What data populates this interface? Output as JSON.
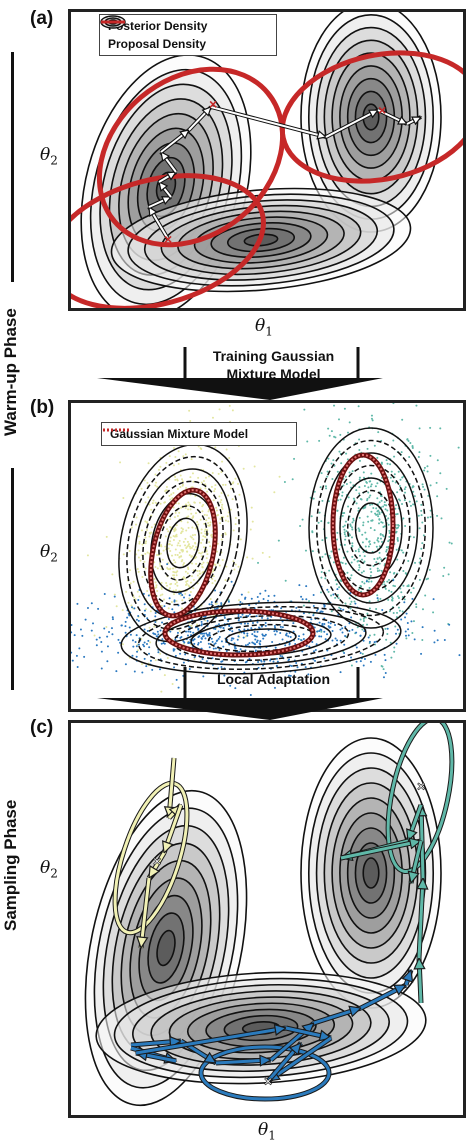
{
  "panels": [
    {
      "label": "(a)"
    },
    {
      "label": "(b)"
    },
    {
      "label": "(c)"
    }
  ],
  "axes": {
    "x": "θ",
    "x_sub": "1",
    "y": "θ",
    "y_sub": "2"
  },
  "legend_a": {
    "posterior": "Posterior Density",
    "proposal": "Proposal Density"
  },
  "legend_b": {
    "gmm": "Gaussian Mixture Model"
  },
  "transitions": {
    "training_line1": "Training  Gaussian",
    "training_line2": "Mixture Model",
    "local": "Local Adaptation"
  },
  "phases": {
    "warmup": "Warm-up Phase",
    "sampling": "Sampling Phase"
  },
  "colors": {
    "proposal": "#c62828",
    "contour": "#111111",
    "cluster_yellow": "#e3e6a0",
    "cluster_teal": "#5fb8a8",
    "cluster_blue": "#2a78c0",
    "arrow_teal": "#5fb8a8",
    "arrow_yellow": "#f1f1b5",
    "arrow_blue": "#2b7bbd"
  }
}
